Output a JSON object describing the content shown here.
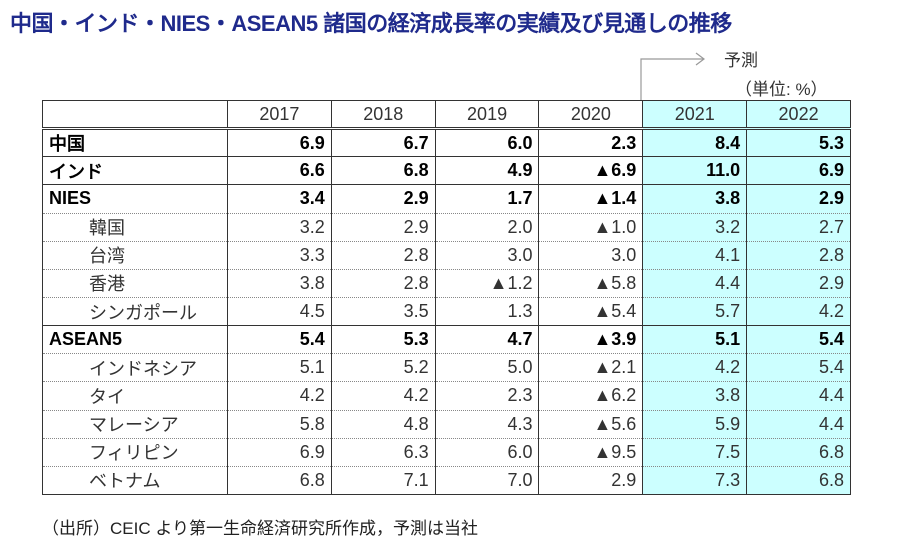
{
  "title": "中国・インド・NIES・ASEAN5 諸国の経済成長率の実績及び見通しの推移",
  "forecast_label": "予測",
  "unit_label": "（単位: %）",
  "footnote": "（出所）CEIC より第一生命経済研究所作成，予測は当社",
  "colors": {
    "title": "#1f2a8c",
    "forecast_bg": "#ccffff"
  },
  "chart_data": {
    "type": "table",
    "columns": [
      "2017",
      "2018",
      "2019",
      "2020",
      "2021",
      "2022"
    ],
    "forecast_columns": [
      "2021",
      "2022"
    ],
    "negative_marker": "▲",
    "rows": [
      {
        "label": "中国",
        "bold": true,
        "values": [
          "6.9",
          "6.7",
          "6.0",
          "2.3",
          "8.4",
          "5.3"
        ]
      },
      {
        "label": "インド",
        "bold": true,
        "values": [
          "6.6",
          "6.8",
          "4.9",
          "▲6.9",
          "11.0",
          "6.9"
        ]
      },
      {
        "label": "NIES",
        "bold": true,
        "values": [
          "3.4",
          "2.9",
          "1.7",
          "▲1.4",
          "3.8",
          "2.9"
        ]
      },
      {
        "label": "韓国",
        "bold": false,
        "values": [
          "3.2",
          "2.9",
          "2.0",
          "▲1.0",
          "3.2",
          "2.7"
        ]
      },
      {
        "label": "台湾",
        "bold": false,
        "values": [
          "3.3",
          "2.8",
          "3.0",
          "3.0",
          "4.1",
          "2.8"
        ]
      },
      {
        "label": "香港",
        "bold": false,
        "values": [
          "3.8",
          "2.8",
          "▲1.2",
          "▲5.8",
          "4.4",
          "2.9"
        ]
      },
      {
        "label": "シンガポール",
        "bold": false,
        "values": [
          "4.5",
          "3.5",
          "1.3",
          "▲5.4",
          "5.7",
          "4.2"
        ]
      },
      {
        "label": "ASEAN5",
        "bold": true,
        "values": [
          "5.4",
          "5.3",
          "4.7",
          "▲3.9",
          "5.1",
          "5.4"
        ]
      },
      {
        "label": "インドネシア",
        "bold": false,
        "values": [
          "5.1",
          "5.2",
          "5.0",
          "▲2.1",
          "4.2",
          "5.4"
        ]
      },
      {
        "label": "タイ",
        "bold": false,
        "values": [
          "4.2",
          "4.2",
          "2.3",
          "▲6.2",
          "3.8",
          "4.4"
        ]
      },
      {
        "label": "マレーシア",
        "bold": false,
        "values": [
          "5.8",
          "4.8",
          "4.3",
          "▲5.6",
          "5.9",
          "4.4"
        ]
      },
      {
        "label": "フィリピン",
        "bold": false,
        "values": [
          "6.9",
          "6.3",
          "6.0",
          "▲9.5",
          "7.5",
          "6.8"
        ]
      },
      {
        "label": "ベトナム",
        "bold": false,
        "values": [
          "6.8",
          "7.1",
          "7.0",
          "2.9",
          "7.3",
          "6.8"
        ]
      }
    ]
  }
}
